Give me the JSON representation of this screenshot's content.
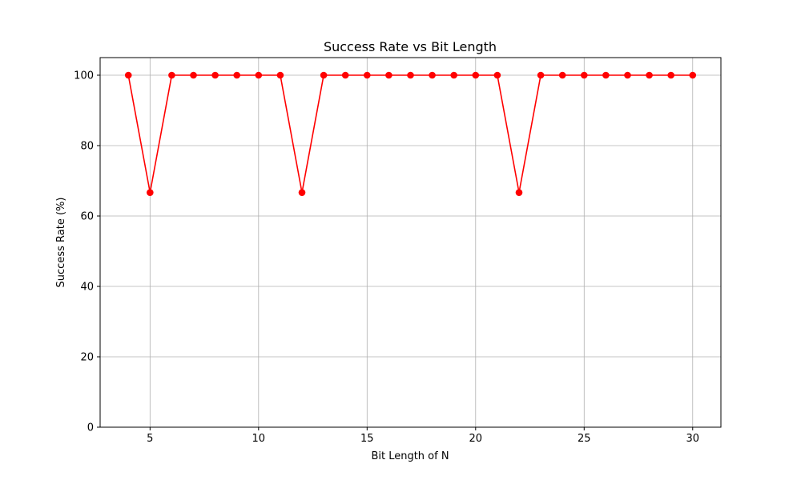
{
  "chart_data": {
    "type": "line",
    "title": "Success Rate vs Bit Length",
    "xlabel": "Bit Length of N",
    "ylabel": "Success Rate (%)",
    "xlim": [
      2.7,
      31.3
    ],
    "ylim": [
      0,
      105
    ],
    "xticks": [
      5,
      10,
      15,
      20,
      25,
      30
    ],
    "yticks": [
      0,
      20,
      40,
      60,
      80,
      100
    ],
    "grid": true,
    "marker": "circle",
    "series": [
      {
        "color": "#ff0000",
        "x": [
          4,
          5,
          6,
          7,
          8,
          9,
          10,
          11,
          12,
          13,
          14,
          15,
          16,
          17,
          18,
          19,
          20,
          21,
          22,
          23,
          24,
          25,
          26,
          27,
          28,
          29,
          30
        ],
        "y": [
          100,
          66.67,
          100,
          100,
          100,
          100,
          100,
          100,
          66.67,
          100,
          100,
          100,
          100,
          100,
          100,
          100,
          100,
          100,
          66.67,
          100,
          100,
          100,
          100,
          100,
          100,
          100,
          100
        ]
      }
    ]
  }
}
